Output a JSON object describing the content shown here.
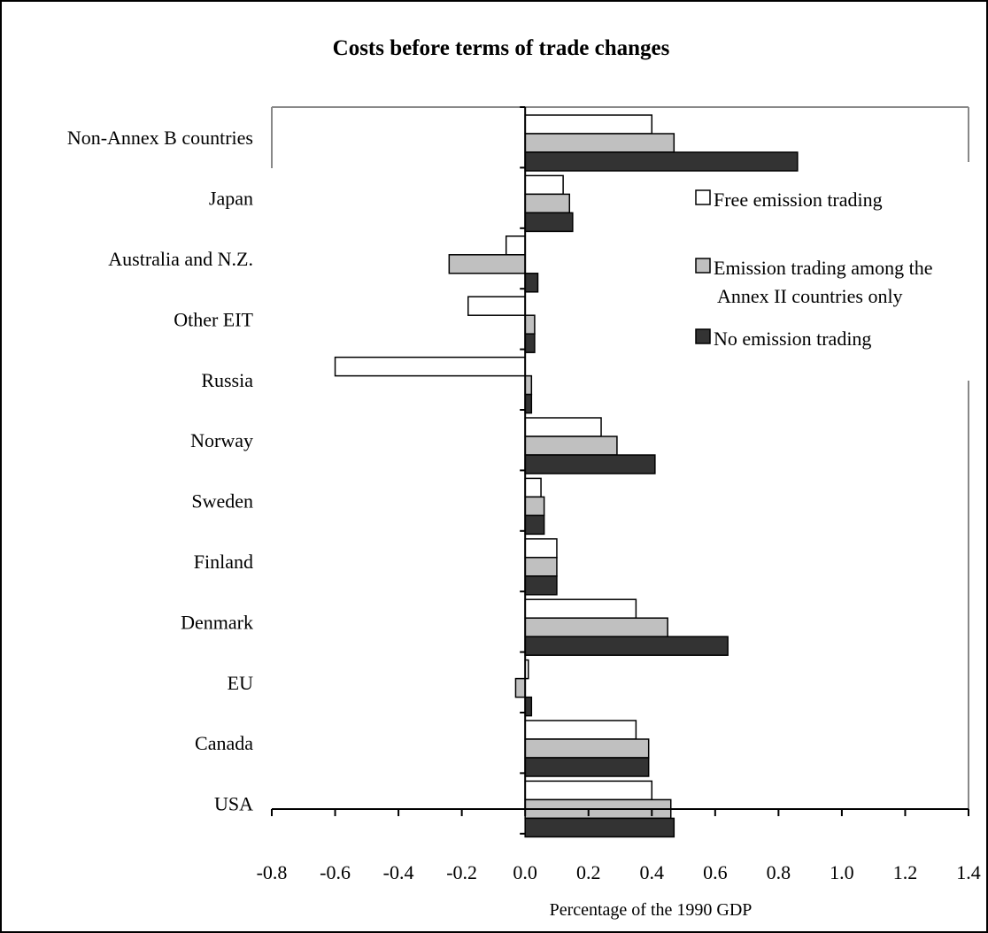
{
  "chart_data": {
    "type": "bar",
    "orientation": "horizontal",
    "title": "Costs before terms of trade changes",
    "xlabel": "Percentage of the 1990 GDP",
    "ylabel": "",
    "xlim": [
      -0.8,
      1.4
    ],
    "x_ticks": [
      "-0.8",
      "-0.6",
      "-0.4",
      "-0.2",
      "0.0",
      "0.2",
      "0.4",
      "0.6",
      "0.8",
      "1.0",
      "1.2",
      "1.4"
    ],
    "categories": [
      "Non-Annex B countries",
      "Japan",
      "Australia and N.Z.",
      "Other EIT",
      "Russia",
      "Norway",
      "Sweden",
      "Finland",
      "Denmark",
      "EU",
      "Canada",
      "USA"
    ],
    "series": [
      {
        "name": "Free emission  trading",
        "color": "#ffffff",
        "values": [
          0.4,
          0.12,
          -0.06,
          -0.18,
          -0.6,
          0.24,
          0.05,
          0.1,
          0.35,
          0.01,
          0.35,
          0.4
        ]
      },
      {
        "name": "Emission trading among the Annex II countries only",
        "legend_lines": [
          "Emission trading among the",
          "Annex II countries only"
        ],
        "color": "#c0c0c0",
        "values": [
          0.47,
          0.14,
          -0.24,
          0.03,
          0.02,
          0.29,
          0.06,
          0.1,
          0.45,
          -0.03,
          0.39,
          0.46
        ]
      },
      {
        "name": "No emission trading",
        "color": "#333333",
        "values": [
          0.86,
          0.15,
          0.04,
          0.03,
          0.02,
          0.41,
          0.06,
          0.1,
          0.64,
          0.02,
          0.39,
          0.47
        ]
      }
    ],
    "legend_position": "right",
    "grid": false
  }
}
